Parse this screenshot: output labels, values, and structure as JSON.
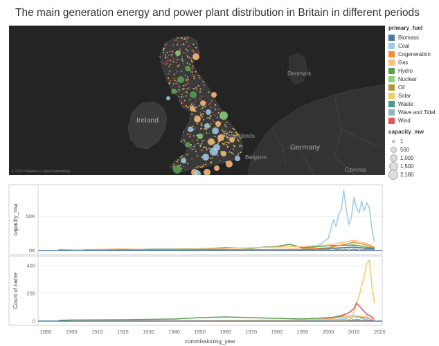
{
  "title": "The main generation energy and power plant distribution in Britain in different periods",
  "map": {
    "labels": {
      "ireland": "Ireland",
      "denmark": "Denmark",
      "netherlands": "Netherlands",
      "belgium": "Belgium",
      "germany": "Germany",
      "czechia": "Czechia"
    },
    "attribution": "© 2020 Mapbox © OpenStreetMap"
  },
  "legend": {
    "fuel_title": "primary_fuel",
    "fuels": [
      {
        "name": "Biomass",
        "color": "#4e79a7"
      },
      {
        "name": "Coal",
        "color": "#a0cbe8"
      },
      {
        "name": "Cogeneration",
        "color": "#f28e2b"
      },
      {
        "name": "Gas",
        "color": "#ffbe7d"
      },
      {
        "name": "Hydro",
        "color": "#59a14f"
      },
      {
        "name": "Nuclear",
        "color": "#8cd17d"
      },
      {
        "name": "Oil",
        "color": "#b6992d"
      },
      {
        "name": "Solar",
        "color": "#f1ce63"
      },
      {
        "name": "Waste",
        "color": "#499894"
      },
      {
        "name": "Wave and Tidal",
        "color": "#86bcb6"
      },
      {
        "name": "Wind",
        "color": "#e15759"
      }
    ],
    "size_title": "capacity_mw",
    "sizes": [
      "1",
      "500",
      "1,000",
      "1,500",
      "2,180"
    ]
  },
  "chart_data": [
    {
      "type": "line",
      "ylabel": "capacity_mw",
      "yticks": [
        "0K",
        "50K"
      ],
      "ylim": [
        0,
        90000
      ],
      "xlim": [
        1887,
        2021
      ],
      "series": [
        {
          "name": "Coal",
          "x": [
            1895,
            1905,
            1950,
            1975,
            1985,
            1990,
            1995,
            1998,
            2000,
            2002,
            2003,
            2004,
            2005,
            2006,
            2007,
            2008,
            2009,
            2010,
            2011,
            2012,
            2013,
            2014,
            2015,
            2016,
            2017,
            2018
          ],
          "y": [
            200,
            500,
            800,
            900,
            800,
            2000,
            5000,
            12000,
            18000,
            45000,
            35000,
            52000,
            58000,
            88000,
            60000,
            38000,
            48000,
            78000,
            62000,
            55000,
            72000,
            58000,
            70000,
            62000,
            30000,
            12000
          ]
        },
        {
          "name": "Hydro",
          "x": [
            1895,
            1900,
            1950,
            1960,
            1970,
            1975,
            1980,
            1985,
            1990,
            2000,
            2010,
            2018
          ],
          "y": [
            1000,
            500,
            2500,
            4000,
            3000,
            5000,
            6000,
            9000,
            4000,
            7000,
            8000,
            3000
          ]
        },
        {
          "name": "Gas",
          "x": [
            1900,
            1910,
            1920,
            1930,
            1950,
            1960,
            1970,
            1990,
            2000,
            2010,
            2015,
            2018
          ],
          "y": [
            500,
            1500,
            2500,
            1000,
            2000,
            3000,
            4000,
            6000,
            8000,
            15000,
            10000,
            5000
          ]
        },
        {
          "name": "Biomass",
          "x": [
            1905,
            1950,
            1990,
            2000,
            2010,
            2018
          ],
          "y": [
            500,
            800,
            1500,
            3000,
            5000,
            2000
          ]
        },
        {
          "name": "Cogeneration",
          "x": [
            1960,
            1990,
            2000,
            2010,
            2015,
            2018
          ],
          "y": [
            500,
            2000,
            4000,
            12000,
            8000,
            4000
          ]
        }
      ]
    },
    {
      "type": "line",
      "ylabel": "Count of name",
      "xlabel": "commissioning_year",
      "yticks": [
        "0",
        "200",
        "400"
      ],
      "xticks": [
        "1890",
        "1900",
        "1910",
        "1920",
        "1930",
        "1940",
        "1950",
        "1960",
        "1970",
        "1980",
        "1990",
        "2000",
        "2010",
        "2020"
      ],
      "ylim": [
        0,
        440
      ],
      "xlim": [
        1887,
        2021
      ],
      "series": [
        {
          "name": "Solar",
          "x": [
            1990,
            2000,
            2005,
            2008,
            2009,
            2010,
            2011,
            2012,
            2013,
            2014,
            2015,
            2016,
            2017,
            2018
          ],
          "y": [
            0,
            2,
            5,
            10,
            20,
            60,
            130,
            180,
            260,
            320,
            420,
            440,
            250,
            130
          ]
        },
        {
          "name": "Wind",
          "x": [
            1990,
            1995,
            2000,
            2005,
            2008,
            2010,
            2011,
            2012,
            2013,
            2014,
            2015,
            2016,
            2017,
            2018
          ],
          "y": [
            0,
            10,
            20,
            40,
            60,
            90,
            130,
            110,
            90,
            70,
            50,
            40,
            30,
            10
          ]
        },
        {
          "name": "Hydro",
          "x": [
            1895,
            1900,
            1920,
            1940,
            1950,
            1960,
            1970,
            1980,
            1990,
            2000,
            2010,
            2018
          ],
          "y": [
            5,
            8,
            10,
            15,
            25,
            30,
            25,
            20,
            15,
            25,
            40,
            10
          ]
        },
        {
          "name": "Coal",
          "x": [
            1900,
            1950,
            1990,
            2000,
            2005,
            2010,
            2015,
            2018
          ],
          "y": [
            2,
            3,
            5,
            10,
            15,
            30,
            20,
            8
          ]
        },
        {
          "name": "Gas",
          "x": [
            1900,
            1950,
            1990,
            2000,
            2010,
            2015,
            2018
          ],
          "y": [
            2,
            4,
            8,
            15,
            40,
            30,
            10
          ]
        }
      ]
    }
  ]
}
